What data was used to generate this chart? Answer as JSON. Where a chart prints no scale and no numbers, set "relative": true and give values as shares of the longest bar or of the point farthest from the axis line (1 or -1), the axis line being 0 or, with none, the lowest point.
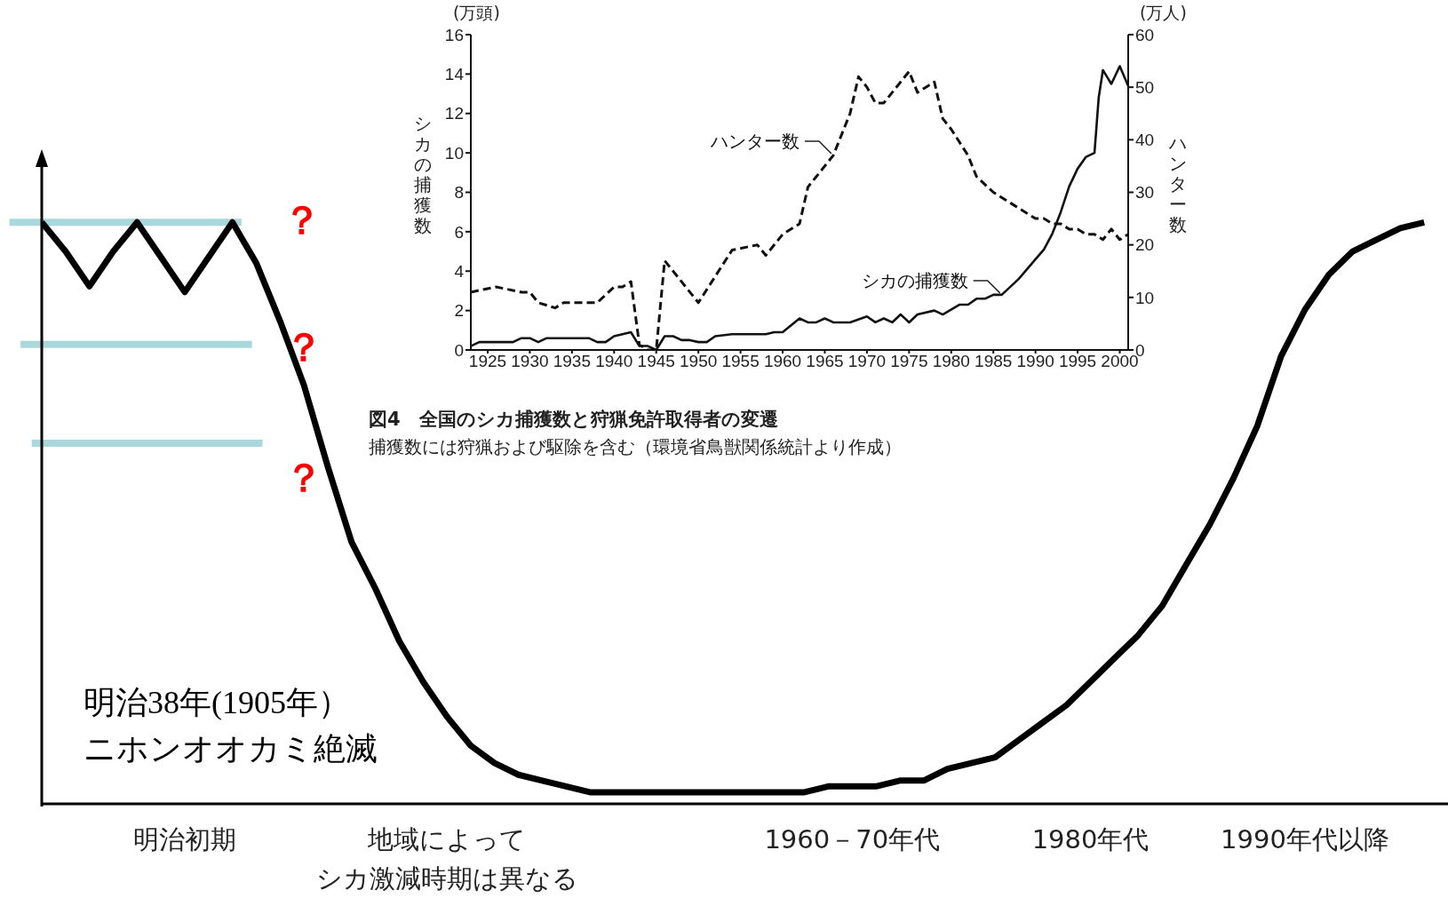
{
  "chart_data": [
    {
      "type": "line",
      "relative": true,
      "color": "#000000",
      "categories": [
        null,
        null,
        null,
        null,
        null,
        null,
        "明治初期",
        null,
        null,
        null,
        null,
        null,
        null,
        null,
        null,
        null,
        null,
        "地域によってシカ激減時期は異なる",
        null,
        null,
        null,
        null,
        null,
        null,
        null,
        null,
        null,
        null,
        null,
        null,
        null,
        null,
        null,
        null,
        "1960－70年代",
        null,
        null,
        null,
        null,
        null,
        null,
        null,
        null,
        null,
        "1980年代",
        null,
        null,
        null,
        null,
        null,
        null,
        null,
        null,
        "1990年代以降",
        null,
        null,
        null,
        null,
        null,
        null
      ],
      "values": [
        1,
        0.95,
        0.89,
        0.95,
        1,
        0.94,
        0.88,
        0.94,
        1,
        0.93,
        0.83,
        0.72,
        0.58,
        0.45,
        0.37,
        0.28,
        0.21,
        0.15,
        0.1,
        0.07,
        0.05,
        0.04,
        0.03,
        0.02,
        0.02,
        0.02,
        0.02,
        0.02,
        0.02,
        0.02,
        0.02,
        0.02,
        0.02,
        0.03,
        0.03,
        0.03,
        0.04,
        0.04,
        0.06,
        0.07,
        0.08,
        0.11,
        0.14,
        0.17,
        0.21,
        0.25,
        0.29,
        0.34,
        0.41,
        0.48,
        0.56,
        0.65,
        0.77,
        0.85,
        0.91,
        0.95,
        0.97,
        0.99,
        1,
        null
      ],
      "ref_lines": [
        {
          "axis": "y",
          "value": 1,
          "color": "#a8d8dc"
        },
        {
          "axis": "y",
          "value": 0.79,
          "color": "#a8d8dc"
        },
        {
          "axis": "y",
          "value": 0.62,
          "color": "#a8d8dc"
        }
      ],
      "annotations": [
        "？",
        "？",
        "？",
        "明治38年(1905年）ニホンオオカミ絶滅"
      ]
    },
    {
      "type": "line",
      "title": "図4　全国のシカ捕獲数と狩猟免許取得者の変遷",
      "ylabel": "シカの捕獲数",
      "y2label": "ハンター数",
      "xlim": [
        1923,
        2001
      ],
      "xticks": [
        1925,
        1930,
        1935,
        1940,
        1945,
        1950,
        1955,
        1960,
        1965,
        1970,
        1975,
        1980,
        1985,
        1990,
        1995,
        2000
      ],
      "ylim": [
        0,
        16
      ],
      "yticks": [
        0,
        2,
        4,
        6,
        8,
        10,
        12,
        14,
        16
      ],
      "y2lim": [
        0,
        60
      ],
      "y2ticks": [
        0,
        10,
        20,
        30,
        40,
        50,
        60
      ],
      "marker": "none",
      "annotations": [
        "(万頭)",
        "(万人)",
        "捕獲数には狩猟および駆除を含む（環境省鳥獣関係統計より作成）"
      ],
      "series": [
        {
          "name": "シカの捕獲数",
          "color": "#111111",
          "line_style": "solid",
          "x": [
            1923,
            1924,
            1928,
            1929,
            1930,
            1931,
            1932,
            1937,
            1938,
            1939,
            1940,
            1942,
            1943,
            1944,
            1945,
            1946,
            1947,
            1948,
            1949,
            1950,
            1951,
            1952,
            1954,
            1958,
            1959,
            1960,
            1962,
            1963,
            1964,
            1965,
            1966,
            1968,
            1970,
            1971,
            1972,
            1973,
            1974,
            1975,
            1976,
            1978,
            1979,
            1981,
            1982,
            1983,
            1984,
            1985,
            1986,
            1988,
            1990,
            1991,
            1992,
            1993,
            1994,
            1995,
            1996,
            1997,
            1997.5,
            1998,
            1999,
            2000,
            2001
          ],
          "values": [
            0.2,
            0.4,
            0.4,
            0.6,
            0.6,
            0.4,
            0.6,
            0.6,
            0.4,
            0.4,
            0.7,
            0.9,
            0.2,
            0.2,
            0,
            0.7,
            0.7,
            0.5,
            0.5,
            0.4,
            0.4,
            0.7,
            0.8,
            0.8,
            0.9,
            0.9,
            1.6,
            1.4,
            1.4,
            1.6,
            1.4,
            1.4,
            1.7,
            1.4,
            1.6,
            1.4,
            1.8,
            1.4,
            1.8,
            2.0,
            1.8,
            2.3,
            2.3,
            2.6,
            2.6,
            2.8,
            2.8,
            3.6,
            4.6,
            5.1,
            5.9,
            7.0,
            8.3,
            9.2,
            9.8,
            10.0,
            12.8,
            14.2,
            13.5,
            14.4,
            13.4
          ]
        },
        {
          "name": "ハンター数",
          "color": "#111111",
          "axis": "y2",
          "line_style": "dashed",
          "x": [
            1923,
            1926,
            1929,
            1930,
            1931,
            1933,
            1934,
            1938,
            1940,
            1941,
            1942,
            1943,
            1944,
            1945,
            1946,
            1950,
            1952,
            1954,
            1957,
            1958,
            1960,
            1962,
            1963,
            1964,
            1965,
            1966,
            1968,
            1969,
            1970,
            1971,
            1972,
            1973,
            1974,
            1975,
            1976,
            1977,
            1978,
            1979,
            1980,
            1982,
            1983,
            1985,
            1987,
            1989,
            1990,
            1991,
            1992,
            1993,
            1994,
            1995,
            1996,
            1997,
            1998,
            1999,
            2000,
            2001
          ],
          "values": [
            11,
            12,
            11,
            11,
            9,
            8,
            9,
            9,
            12,
            12,
            13,
            1,
            0,
            0,
            17,
            9,
            14,
            19,
            20,
            18,
            22,
            24,
            31,
            33,
            35,
            37,
            45,
            52,
            50,
            47,
            47,
            49,
            51,
            53,
            49,
            50,
            51,
            44,
            42,
            37,
            33,
            30,
            28,
            26,
            25,
            25,
            24,
            24,
            23,
            23,
            22,
            22,
            21,
            23,
            21,
            22
          ]
        }
      ]
    }
  ]
}
